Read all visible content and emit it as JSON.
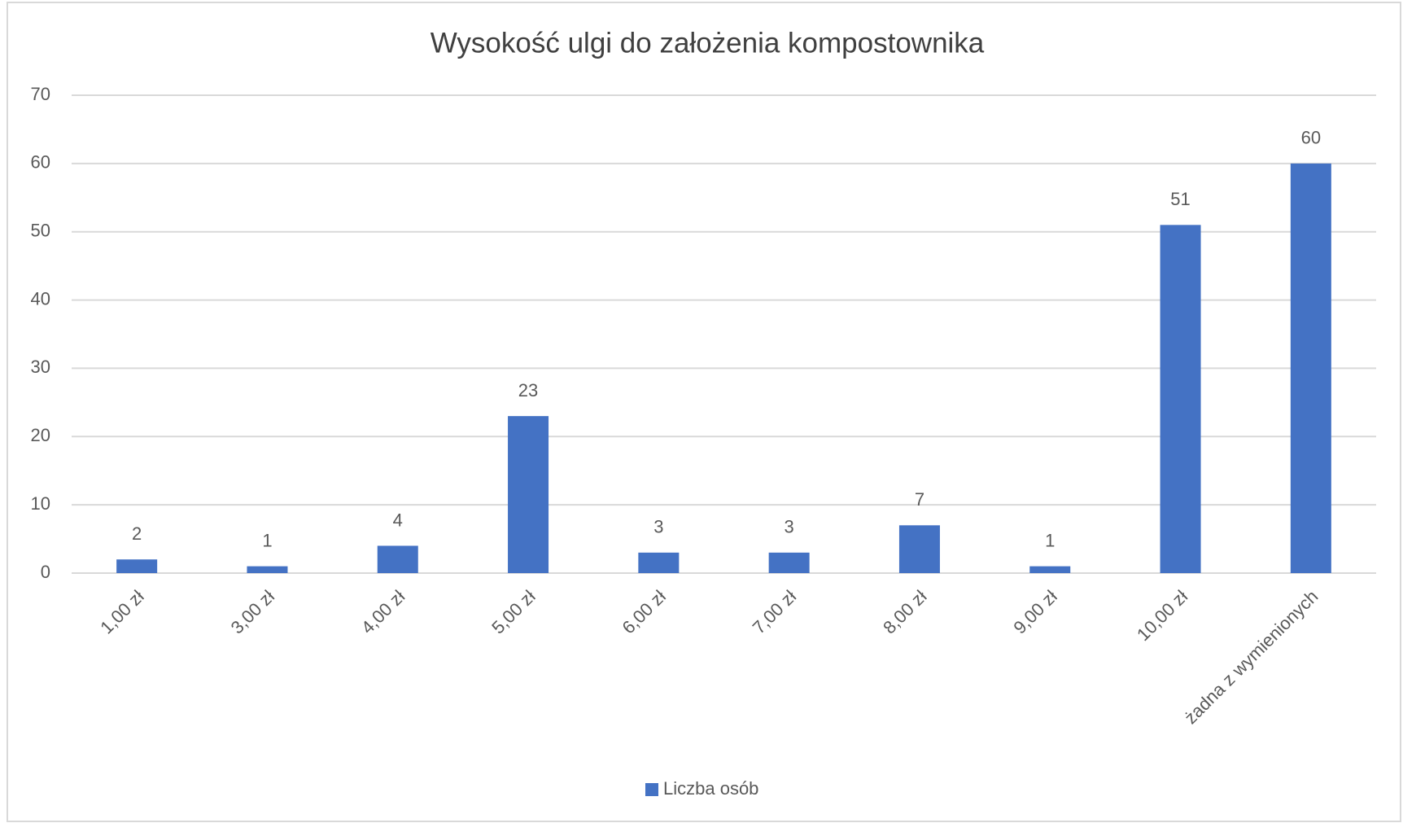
{
  "chart_data": {
    "type": "bar",
    "title": "Wysokość ulgi do założenia kompostownika",
    "categories": [
      "1,00 zł",
      "3,00 zł",
      "4,00 zł",
      "5,00 zł",
      "6,00 zł",
      "7,00 zł",
      "8,00 zł",
      "9,00 zł",
      "10,00 zł",
      "żadna z wymienionych"
    ],
    "series": [
      {
        "name": "Liczba osób",
        "color": "#4472c4",
        "values": [
          2,
          1,
          4,
          23,
          3,
          3,
          7,
          1,
          51,
          60
        ]
      }
    ],
    "ylim": [
      0,
      70
    ],
    "yticks": [
      0,
      10,
      20,
      30,
      40,
      50,
      60,
      70
    ],
    "grid": true,
    "legend": "bottom"
  }
}
